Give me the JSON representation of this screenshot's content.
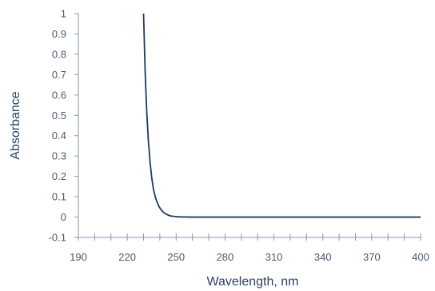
{
  "chart_data": {
    "type": "line",
    "title": "",
    "xlabel": "Wavelength, nm",
    "ylabel": "Absorbance",
    "xlim": [
      190,
      400
    ],
    "ylim": [
      -0.1,
      1
    ],
    "xticks": [
      190,
      220,
      250,
      280,
      310,
      340,
      370,
      400
    ],
    "yticks": [
      -0.1,
      0,
      0.1,
      0.2,
      0.3,
      0.4,
      0.5,
      0.6,
      0.7,
      0.8,
      0.9,
      1
    ],
    "grid": false,
    "line_color": "#1f3a5f",
    "axis_color": "#8a97ad",
    "series": [
      {
        "x": [
          230,
          231,
          232,
          233,
          234,
          235,
          236,
          237,
          238,
          239,
          240,
          241,
          242,
          243,
          244,
          245,
          246,
          247,
          248,
          250,
          253,
          260,
          280,
          300,
          330,
          360,
          370,
          380,
          390,
          400
        ],
        "y": [
          1.0,
          0.71,
          0.51,
          0.37,
          0.27,
          0.195,
          0.14,
          0.105,
          0.08,
          0.06,
          0.045,
          0.034,
          0.025,
          0.019,
          0.014,
          0.01,
          0.007,
          0.005,
          0.004,
          0.002,
          0.001,
          0.0,
          0.0,
          0.0,
          0.0,
          0.0,
          0.0,
          0.0,
          0.0,
          0.0
        ]
      }
    ]
  }
}
